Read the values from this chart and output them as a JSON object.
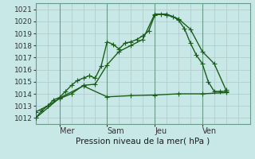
{
  "title": "Pression niveau de la mer( hPa )",
  "ylabel_ticks": [
    1012,
    1013,
    1014,
    1015,
    1016,
    1017,
    1018,
    1019,
    1020,
    1021
  ],
  "ylim": [
    1011.5,
    1021.5
  ],
  "xlim": [
    0,
    108
  ],
  "xtick_positions": [
    12,
    36,
    60,
    84
  ],
  "xtick_labels": [
    "Mer",
    "Sam",
    "Jeu",
    "Ven"
  ],
  "vline_positions": [
    12,
    36,
    60,
    84
  ],
  "bg_color": "#c8e8e8",
  "grid_color": "#b0c8c8",
  "line_color": "#1a5e1a",
  "series1_x": [
    0,
    3,
    6,
    9,
    12,
    15,
    18,
    21,
    24,
    27,
    30,
    33,
    36,
    39,
    42,
    45,
    48,
    51,
    54,
    57,
    60,
    63,
    66,
    69,
    72,
    75,
    78,
    81,
    84,
    87,
    90,
    93,
    96
  ],
  "series1_y": [
    1012.0,
    1012.6,
    1013.0,
    1013.5,
    1013.7,
    1014.2,
    1014.7,
    1015.1,
    1015.3,
    1015.5,
    1015.3,
    1016.3,
    1018.3,
    1018.1,
    1017.7,
    1018.2,
    1018.3,
    1018.5,
    1018.8,
    1019.2,
    1020.5,
    1020.6,
    1020.5,
    1020.4,
    1020.1,
    1019.4,
    1018.2,
    1017.2,
    1016.5,
    1015.0,
    1014.2,
    1014.2,
    1014.2
  ],
  "series2_x": [
    0,
    6,
    12,
    18,
    24,
    30,
    36,
    42,
    48,
    54,
    60,
    66,
    72,
    78,
    84,
    90,
    96
  ],
  "series2_y": [
    1012.5,
    1013.0,
    1013.6,
    1014.0,
    1014.7,
    1014.8,
    1016.4,
    1017.5,
    1018.0,
    1018.5,
    1020.6,
    1020.6,
    1020.2,
    1019.35,
    1017.5,
    1016.5,
    1014.3
  ],
  "series3_x": [
    0,
    12,
    24,
    36,
    48,
    60,
    72,
    84,
    96
  ],
  "series3_y": [
    1012.0,
    1013.65,
    1014.65,
    1013.75,
    1013.85,
    1013.9,
    1014.0,
    1014.0,
    1014.1
  ],
  "marker": "+",
  "markersize": 4,
  "linewidth": 1.0
}
